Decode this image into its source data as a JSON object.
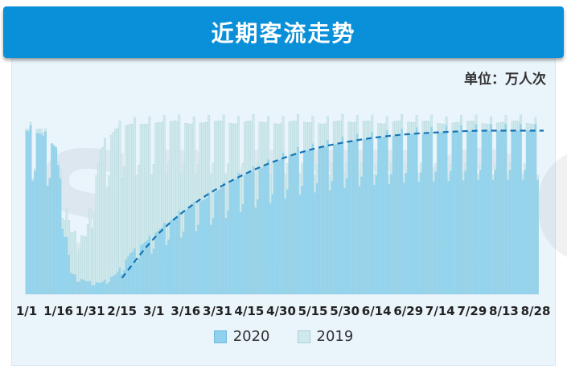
{
  "header": {
    "title": "近期客流走势"
  },
  "unit_label": "单位：万人次",
  "watermark": {
    "text": "SMTCC"
  },
  "legend": {
    "items": [
      {
        "label": "2020",
        "color": "#8fd0ec"
      },
      {
        "label": "2019",
        "color": "#cfe9ec"
      }
    ]
  },
  "colors": {
    "bar_2020": "#8fd0ec",
    "bar_2019": "#cfe9ec",
    "trend": "#1474b4",
    "frame_bg": "#eaf4fb",
    "header_bg": "#0a8fd9"
  },
  "chart_data": {
    "type": "bar",
    "title": "近期客流走势",
    "xlabel": "",
    "ylabel": "",
    "unit": "万人次",
    "ylim": [
      0,
      1150
    ],
    "grid": false,
    "legend_position": "bottom",
    "x_ticks": [
      "1/1",
      "1/16",
      "1/31",
      "2/15",
      "3/1",
      "3/16",
      "3/31",
      "4/15",
      "4/30",
      "5/15",
      "5/30",
      "6/14",
      "6/29",
      "7/14",
      "7/29",
      "8/13",
      "8/28"
    ],
    "weekly_2019": [
      1010,
      1010,
      880,
      380,
      350,
      880,
      1010,
      1040,
      1040,
      1050,
      1060,
      1040,
      1050,
      1060,
      1040,
      1060,
      1050,
      1040,
      1060,
      1050,
      1040,
      1060,
      1050,
      1060,
      1040,
      1060,
      1050,
      1060,
      1040,
      1050,
      1060,
      1040,
      1050,
      1060,
      1040
    ],
    "weekly_2020": [
      1000,
      980,
      900,
      130,
      80,
      70,
      120,
      250,
      320,
      400,
      470,
      530,
      580,
      640,
      700,
      740,
      780,
      820,
      860,
      880,
      900,
      920,
      940,
      950,
      960,
      970,
      980,
      980,
      990,
      990,
      1000,
      1000,
      1000,
      1000,
      1000
    ],
    "series": [
      {
        "name": "2020",
        "color": "#8fd0ec"
      },
      {
        "name": "2019",
        "color": "#cfe9ec"
      }
    ],
    "trend_line": {
      "series": "2020",
      "style": "dashed",
      "x": [
        "2/15",
        "3/1",
        "3/16",
        "3/31",
        "4/15",
        "4/30",
        "5/15",
        "5/30",
        "6/14",
        "6/29",
        "7/14",
        "7/29",
        "8/13",
        "8/28"
      ],
      "y": [
        100,
        350,
        520,
        650,
        750,
        830,
        890,
        930,
        960,
        980,
        990,
        1000,
        1000,
        1000
      ]
    }
  }
}
